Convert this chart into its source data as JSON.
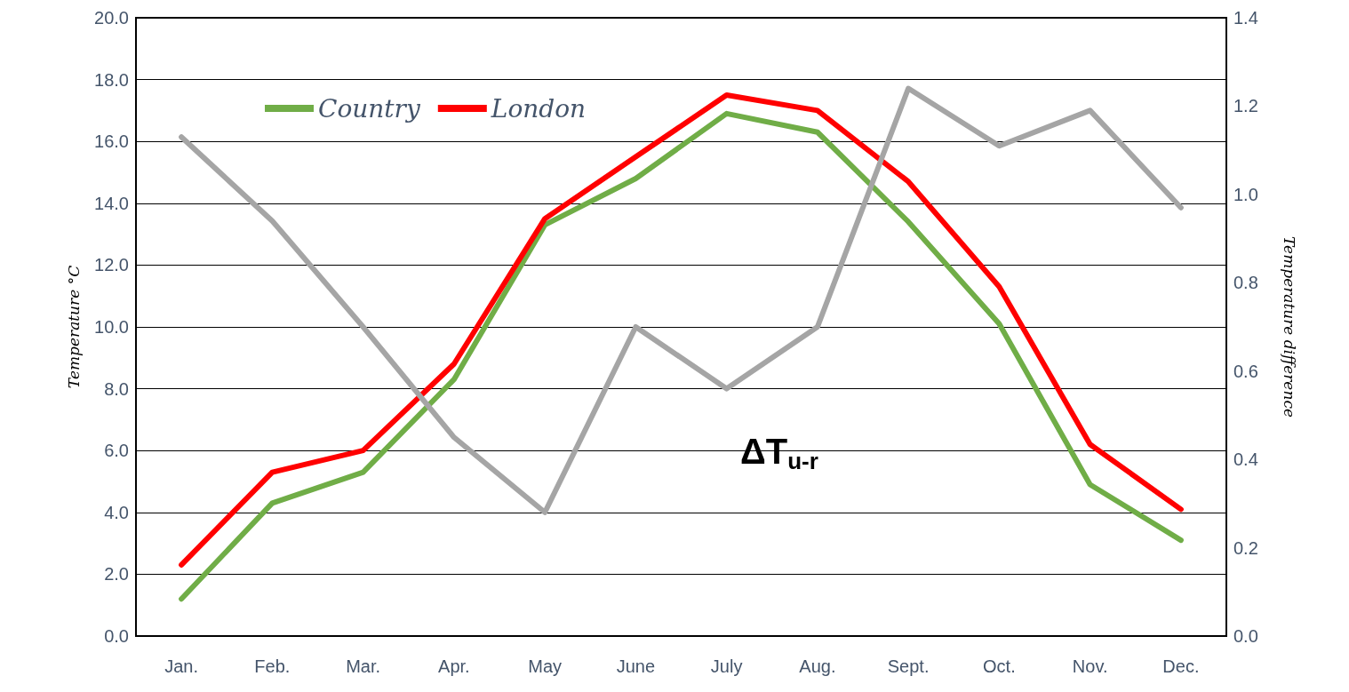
{
  "chart_data": {
    "type": "line",
    "ylabel": "Temperature °C",
    "y2label": "Temperature difference",
    "categories": [
      "Jan.",
      "Feb.",
      "Mar.",
      "Apr.",
      "May",
      "June",
      "July",
      "Aug.",
      "Sept.",
      "Oct.",
      "Nov.",
      "Dec."
    ],
    "series": [
      {
        "name": "Country",
        "color": "#70ad47",
        "values": [
          1.2,
          4.3,
          5.3,
          8.3,
          13.3,
          14.8,
          16.9,
          16.3,
          13.4,
          10.1,
          4.9,
          3.1
        ]
      },
      {
        "name": "London",
        "color": "#ff0000",
        "values": [
          2.3,
          5.3,
          6.0,
          8.8,
          13.5,
          15.5,
          17.5,
          17.0,
          14.7,
          11.3,
          6.2,
          4.1
        ]
      },
      {
        "color": "#a5a5a5",
        "axis": "y2",
        "values": [
          1.13,
          0.94,
          0.7,
          0.45,
          0.28,
          0.7,
          0.56,
          0.7,
          1.24,
          1.11,
          1.19,
          0.97
        ]
      }
    ],
    "ylim": [
      0,
      20
    ],
    "yticks": [
      {
        "value": 0,
        "label": "0.0"
      },
      {
        "value": 2,
        "label": "2.0"
      },
      {
        "value": 4,
        "label": "4.0"
      },
      {
        "value": 6,
        "label": "6.0"
      },
      {
        "value": 8,
        "label": "8.0"
      },
      {
        "value": 10,
        "label": "10.0"
      },
      {
        "value": 12,
        "label": "12.0"
      },
      {
        "value": 14,
        "label": "14.0"
      },
      {
        "value": 16,
        "label": "16.0"
      },
      {
        "value": 18,
        "label": "18.0"
      },
      {
        "value": 20,
        "label": "20.0"
      }
    ],
    "y2lim": [
      0,
      1.4
    ],
    "y2ticks": [
      {
        "value": 0,
        "label": "0.0"
      },
      {
        "value": 0.2,
        "label": "0.2"
      },
      {
        "value": 0.4,
        "label": "0.4"
      },
      {
        "value": 0.6,
        "label": "0.6"
      },
      {
        "value": 0.8,
        "label": "0.8"
      },
      {
        "value": 1,
        "label": "1.0"
      },
      {
        "value": 1.2,
        "label": "1.2"
      },
      {
        "value": 1.4,
        "label": "1.4"
      }
    ],
    "annotations": [
      "ΔT$_{u-r}$"
    ],
    "grid": "y",
    "legend": "top left",
    "marker": "none",
    "line_style": "solid"
  }
}
